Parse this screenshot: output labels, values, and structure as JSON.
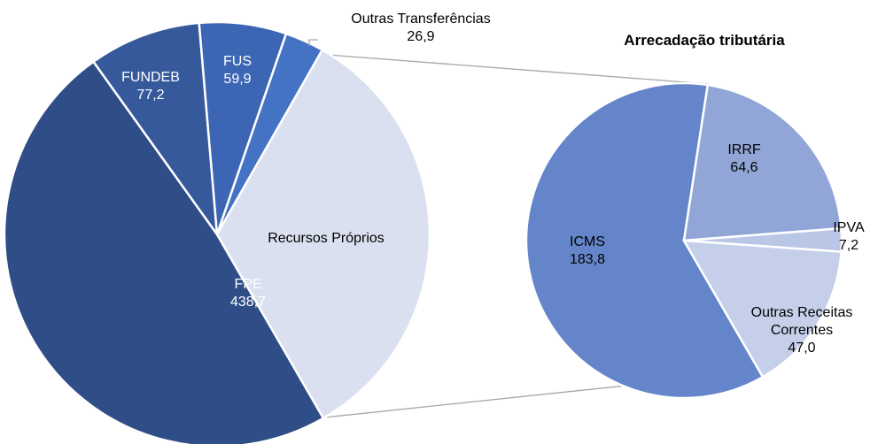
{
  "chart_data": [
    {
      "type": "pie",
      "categories": [
        "FPE",
        "FUNDEB",
        "FUS",
        "Outras Transferências",
        "Recursos Próprios"
      ],
      "values": [
        438.7,
        77.2,
        59.9,
        26.9,
        302.6
      ],
      "value_labels": [
        "438,7",
        "77,2",
        "59,9",
        "26,9",
        null
      ],
      "colors": [
        "#2f4d87",
        "#36599c",
        "#3c66b3",
        "#4472c4",
        "#dae0ef"
      ]
    },
    {
      "type": "pie",
      "title": "Arrecadação tributária",
      "categories": [
        "ICMS",
        "IRRF",
        "IPVA",
        "Outras Receitas Correntes"
      ],
      "values": [
        183.8,
        64.6,
        7.2,
        47.0
      ],
      "value_labels": [
        "183,8",
        "64,6",
        "7,2",
        "47,0"
      ],
      "colors": [
        "#6485c9",
        "#91a6d6",
        "#b9c6e6",
        "#c5cfe9"
      ]
    }
  ]
}
